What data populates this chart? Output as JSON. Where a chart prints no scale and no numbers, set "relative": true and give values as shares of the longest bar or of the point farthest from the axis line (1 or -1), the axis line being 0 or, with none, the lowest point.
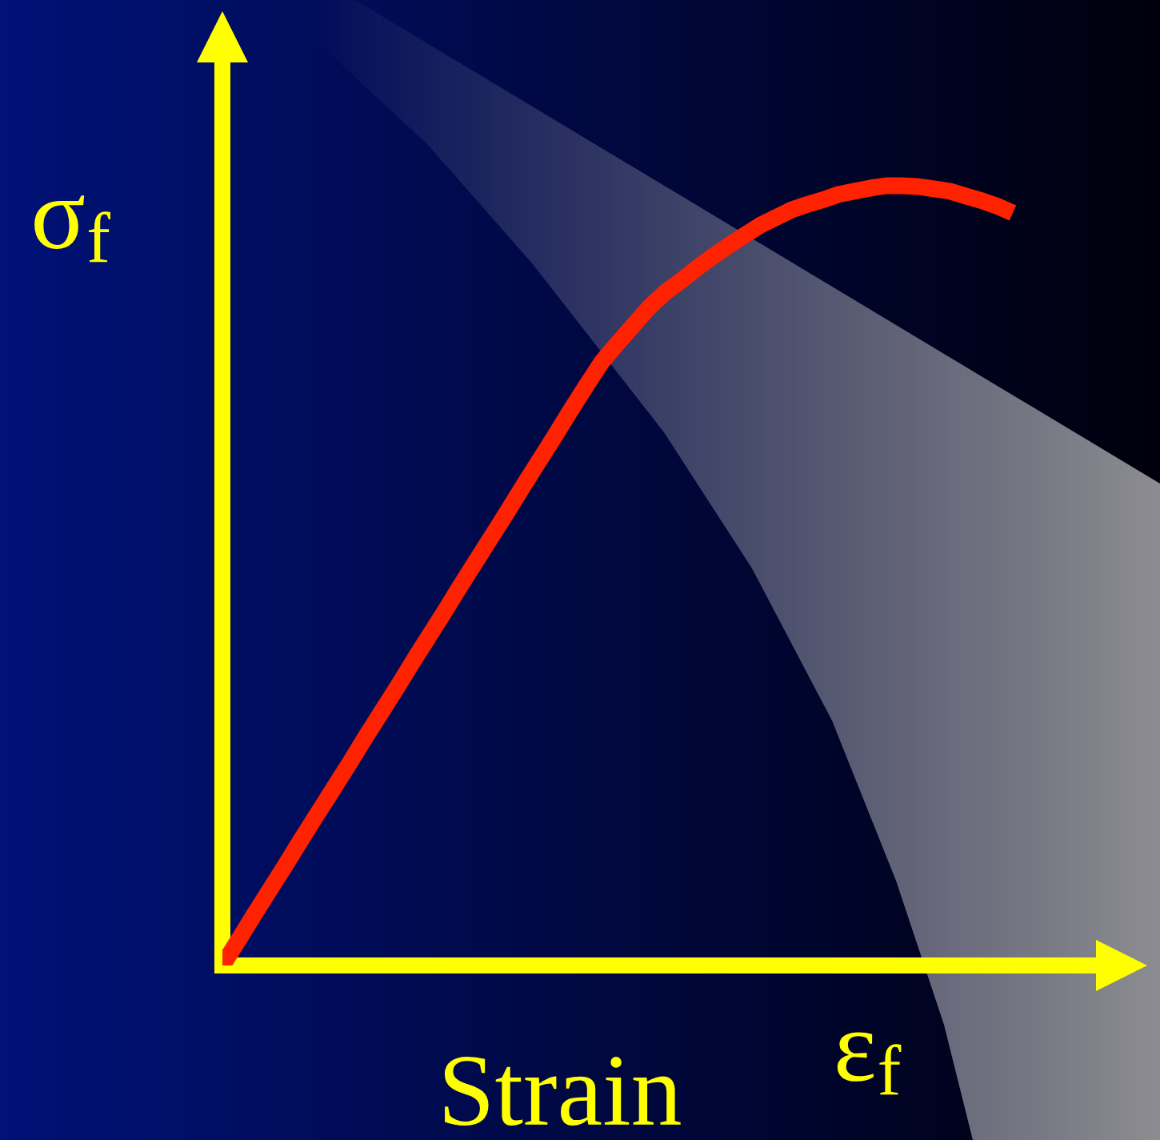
{
  "chart_data": {
    "type": "line",
    "relative": true,
    "xlabel": "Strain",
    "ylabel": "σ$_{f}$",
    "annotations": [
      "ε$_{f}$"
    ],
    "categories": [
      null,
      null,
      null,
      null,
      null,
      null,
      null,
      null,
      null,
      null,
      null,
      null,
      null,
      null,
      null,
      null,
      null,
      null,
      null,
      null,
      null,
      null,
      null,
      null,
      null,
      null,
      null,
      null,
      null,
      null,
      null,
      null,
      null,
      null,
      null,
      null,
      null,
      null,
      null,
      null,
      null,
      null,
      null,
      null,
      null,
      null,
      null,
      null,
      null,
      null,
      null
    ],
    "series": [
      {
        "color": "#ff2200",
        "values": [
          0,
          0.032,
          0.065,
          0.097,
          0.129,
          0.162,
          0.194,
          0.226,
          0.258,
          0.291,
          0.323,
          0.355,
          0.388,
          0.42,
          0.452,
          0.485,
          0.517,
          0.549,
          0.581,
          0.614,
          0.646,
          0.678,
          0.711,
          0.743,
          0.774,
          0.798,
          0.821,
          0.844,
          0.863,
          0.878,
          0.894,
          0.909,
          0.923,
          0.936,
          0.949,
          0.959,
          0.969,
          0.976,
          0.982,
          0.989,
          0.993,
          0.997,
          1,
          1,
          0.999,
          0.996,
          0.993,
          0.987,
          0.981,
          0.974,
          0.965
        ]
      }
    ]
  }
}
